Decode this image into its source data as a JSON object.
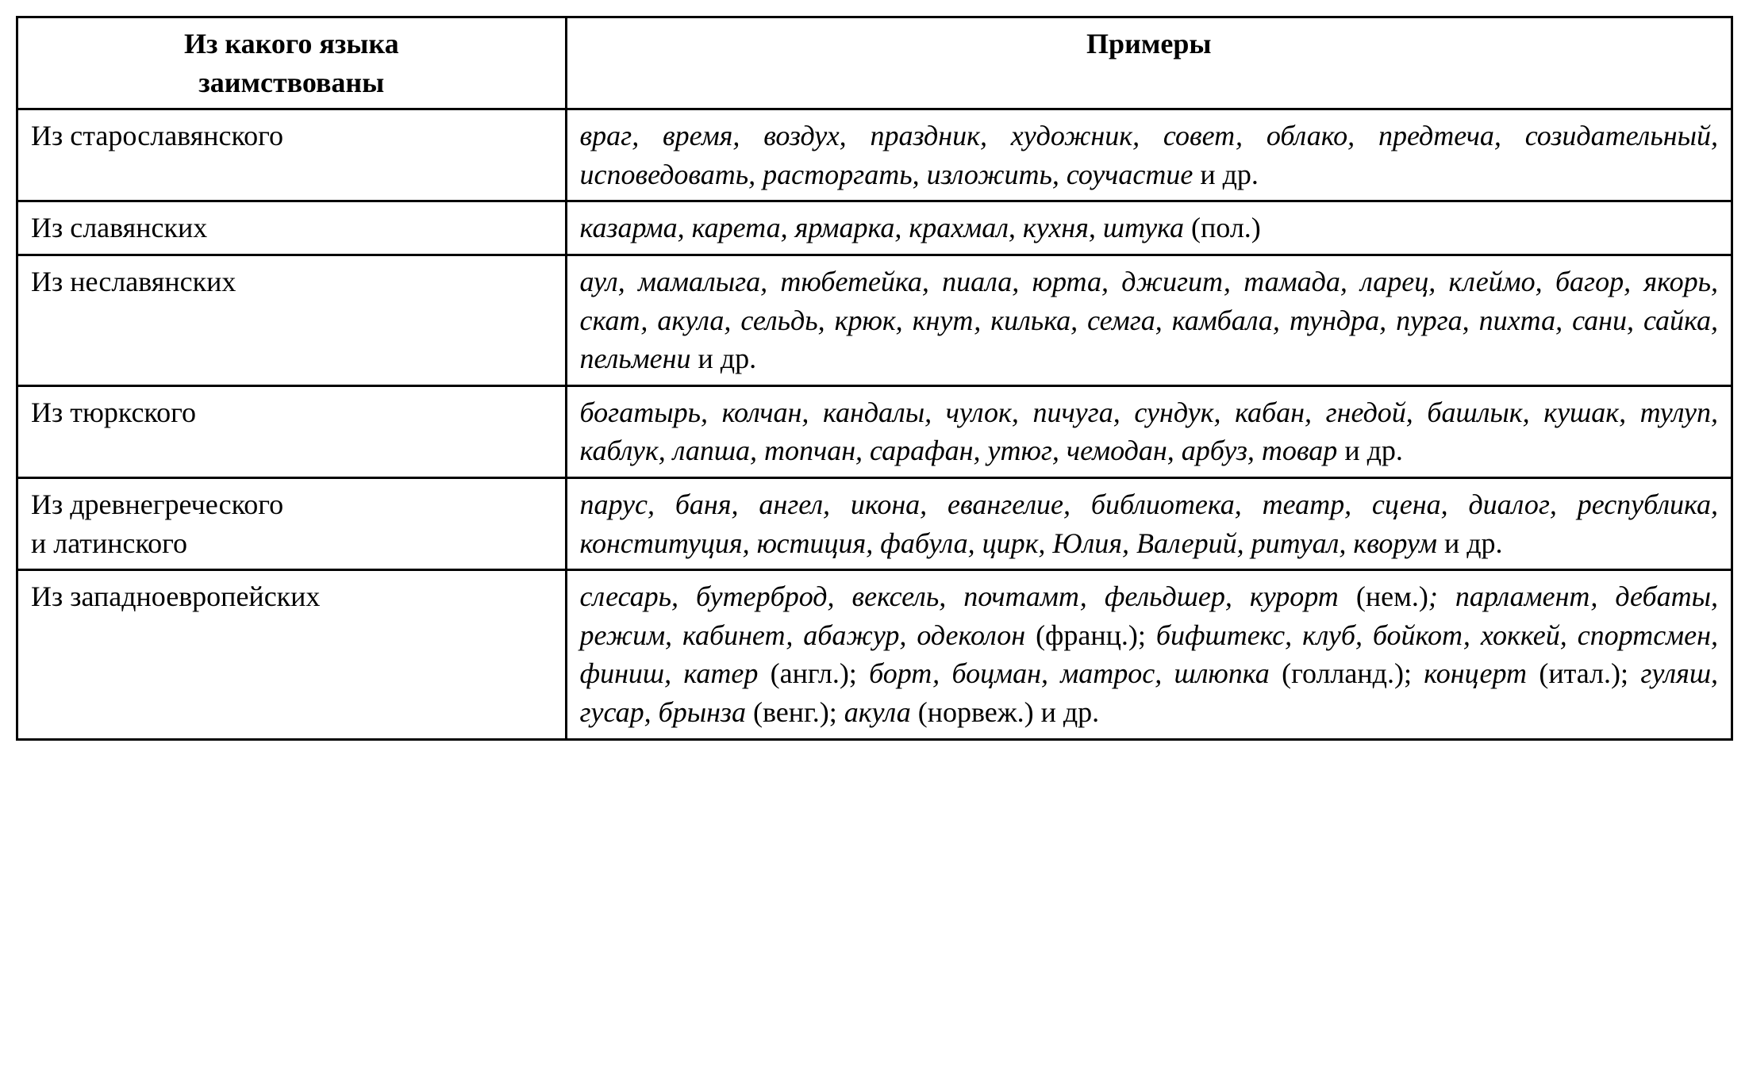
{
  "table": {
    "headers": {
      "col1_line1": "Из какого языка",
      "col1_line2": "заимствованы",
      "col2": "Примеры"
    },
    "rows": [
      {
        "source": "Из старославянского",
        "examples_html": "<em>враг, время, воздух, праздник, художник, совет, облако, предтеча, созидательный, исповедовать, расторгать, изложить, соучастие</em> и др."
      },
      {
        "source": "Из славянских",
        "examples_html": "<em>казарма, карета, ярмарка, крахмал, кухня, штука</em> (пол.)"
      },
      {
        "source": "Из неславянских",
        "examples_html": "<em>аул, мамалыга, тюбетейка, пиала, юрта, джигит, тамада, ларец, клеймо, багор, якорь, скат, акула, сельдь, крюк, кнут, килька, семга, камбала, тундра, пурга, пихта, сани, сайка, пельмени</em> и др."
      },
      {
        "source": "Из тюркского",
        "examples_html": "<em>богатырь, колчан, кандалы, чулок, пичуга, сундук, кабан, гнедой, башлык, кушак, тулуп, каблук, лапша, топчан, сарафан, утюг, чемодан, арбуз, товар</em> и др."
      },
      {
        "source_line1": "Из древнегреческого",
        "source_line2": "и латинского",
        "examples_html": "<em>парус, баня, ангел, икона, евангелие, библиотека, театр, сцена, диалог, республика, конституция, юстиция, фабула, цирк, Юлия, Валерий, ритуал, кворум</em> и др."
      },
      {
        "source": "Из западноевропейских",
        "examples_html": "<em>слесарь, бутерброд, вексель, почтамт, фельдшер, курорт</em> (нем.)<em>; парламент, дебаты, режим, кабинет, абажур, одеколон</em> (франц.); <em>бифштекс, клуб, бойкот, хоккей, спортсмен, финиш, катер</em> (англ.); <em>борт, боцман, матрос, шлюпка</em> (голланд.); <em>концерт</em> (итал.); <em>гуляш, гусар, брынза</em> (венг.); <em>акула</em> (норвеж.) и др."
      }
    ],
    "styling": {
      "border_color": "#000000",
      "border_width": 3,
      "background_color": "#ffffff",
      "font_family": "Times New Roman",
      "header_font_size": 36,
      "body_font_size": 36,
      "header_font_weight": "bold",
      "col1_width_pct": 32,
      "col2_width_pct": 68,
      "examples_italic": true,
      "text_align_examples": "justify"
    }
  }
}
